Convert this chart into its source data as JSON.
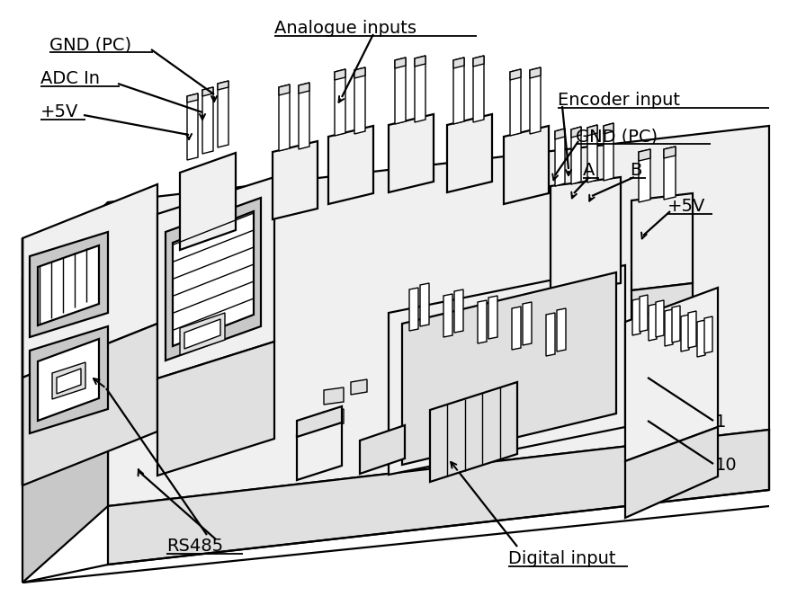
{
  "bg_color": "#ffffff",
  "line_color": "#000000",
  "figsize": [
    8.96,
    6.83
  ],
  "dpi": 100,
  "lw_main": 1.6,
  "lw_thin": 1.0,
  "labels": {
    "gnd_pc_top": "GND (PC)",
    "adc_in": "ADC In",
    "plus5v_left": "+5V",
    "analogue_inputs": "Analogue inputs",
    "encoder_input": "Encoder input",
    "gnd_pc_right": "GND (PC)",
    "A": "A",
    "B": "B",
    "plus5v_right": "+5V",
    "rs485": "RS485",
    "digital_input": "Digital input",
    "pin1": "1",
    "pin10": "10"
  },
  "font_size": 14
}
